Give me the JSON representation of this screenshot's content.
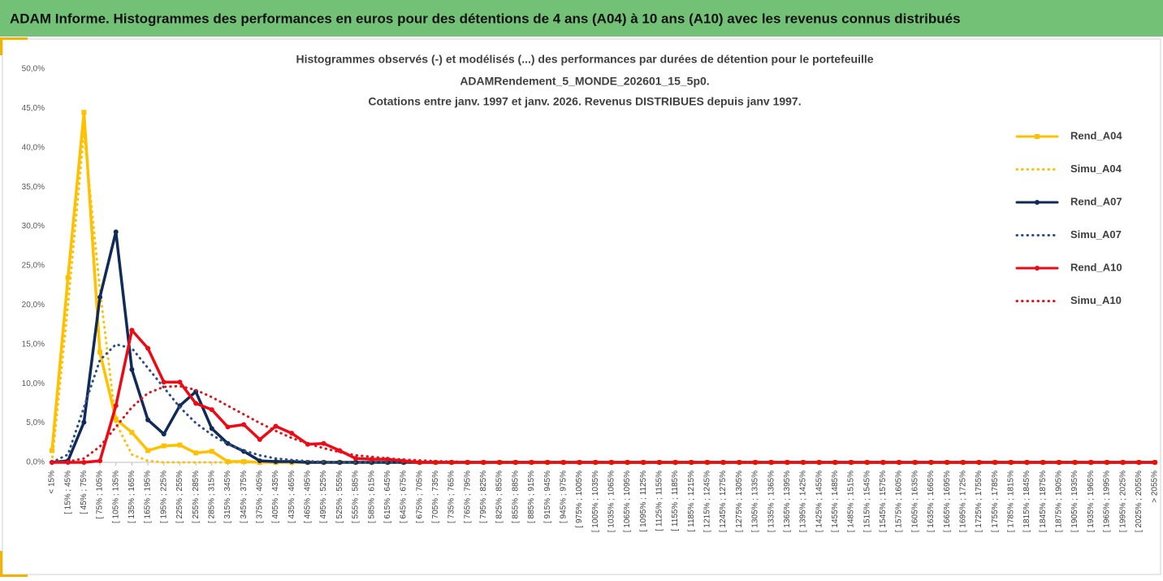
{
  "header": "ADAM Informe. Histogrammes des performances en euros pour des détentions de 4 ans (A04) à 10 ans (A10) avec les revenus connus distribués",
  "chart_data": {
    "type": "line",
    "title": [
      "Histogrammes observés (-) et modélisés (...) des performances par durées de détention pour le portefeuille",
      "ADAMRendement_5_MONDE_202601_15_5p0.",
      "Cotations entre janv. 1997 et janv. 2026. Revenus DISTRIBUES depuis janv 1997."
    ],
    "categories": [
      "< 15%",
      "[ 15% ; 45%",
      "[ 45% ; 75%",
      "[ 75% ; 105%",
      "[ 105% ; 135%",
      "[ 135% ; 165%",
      "[ 165% ; 195%",
      "[ 195% ; 225%",
      "[ 225% ; 255%",
      "[ 255% ; 285%",
      "[ 285% ; 315%",
      "[ 315% ; 345%",
      "[ 345% ; 375%",
      "[ 375% ; 405%",
      "[ 405% ; 435%",
      "[ 435% ; 465%",
      "[ 465% ; 495%",
      "[ 495% ; 525%",
      "[ 525% ; 555%",
      "[ 555% ; 585%",
      "[ 585% ; 615%",
      "[ 615% ; 645%",
      "[ 645% ; 675%",
      "[ 675% ; 705%",
      "[ 705% ; 735%",
      "[ 735% ; 765%",
      "[ 765% ; 795%",
      "[ 795% ; 825%",
      "[ 825% ; 855%",
      "[ 855% ; 885%",
      "[ 885% ; 915%",
      "[ 915% ; 945%",
      "[ 945% ; 975%",
      "[ 975% ; 1005%",
      "[ 1005% ; 1035%",
      "[ 1035% ; 1065%",
      "[ 1065% ; 1095%",
      "[ 1095% ; 1125%",
      "[ 1125% ; 1155%",
      "[ 1155% ; 1185%",
      "[ 1185% ; 1215%",
      "[ 1215% ; 1245%",
      "[ 1245% ; 1275%",
      "[ 1275% ; 1305%",
      "[ 1305% ; 1335%",
      "[ 1335% ; 1365%",
      "[ 1365% ; 1395%",
      "[ 1395% ; 1425%",
      "[ 1425% ; 1455%",
      "[ 1455% ; 1485%",
      "[ 1485% ; 1515%",
      "[ 1515% ; 1545%",
      "[ 1545% ; 1575%",
      "[ 1575% ; 1605%",
      "[ 1605% ; 1635%",
      "[ 1635% ; 1665%",
      "[ 1665% ; 1695%",
      "[ 1695% ; 1725%",
      "[ 1725% ; 1755%",
      "[ 1755% ; 1785%",
      "[ 1785% ; 1815%",
      "[ 1815% ; 1845%",
      "[ 1845% ; 1875%",
      "[ 1875% ; 1905%",
      "[ 1905% ; 1935%",
      "[ 1935% ; 1965%",
      "[ 1965% ; 1995%",
      "[ 1995% ; 2025%",
      "[ 2025% ; 2055%",
      "> 2055%"
    ],
    "series": [
      {
        "name": "Rend_A04",
        "color": "#ffc000",
        "style": "solid",
        "marker": "square",
        "values": [
          1.5,
          23.5,
          44.5,
          14,
          5.5,
          3.8,
          1.5,
          2.1,
          2.2,
          1.2,
          1.4,
          0.1,
          0.1,
          0,
          0,
          0,
          0,
          0,
          0,
          0,
          0,
          0,
          0,
          0,
          0,
          0,
          0,
          0,
          0,
          0,
          0,
          0,
          0,
          0,
          0,
          0,
          0,
          0,
          0,
          0,
          0,
          0,
          0,
          0,
          0,
          0,
          0,
          0,
          0,
          0,
          0,
          0,
          0,
          0,
          0,
          0,
          0,
          0,
          0,
          0,
          0,
          0,
          0,
          0,
          0,
          0,
          0,
          0,
          0,
          0
        ]
      },
      {
        "name": "Simu_A04",
        "color": "#ffc000",
        "style": "dotted",
        "values": [
          0,
          20,
          42,
          22,
          5,
          1,
          0.2,
          0,
          0,
          0,
          0,
          0,
          0,
          0,
          0,
          0,
          0,
          0,
          0,
          0,
          0,
          0,
          0,
          0,
          0,
          0,
          0,
          0,
          0,
          0,
          0,
          0,
          0,
          0,
          0,
          0,
          0,
          0,
          0,
          0,
          0,
          0,
          0,
          0,
          0,
          0,
          0,
          0,
          0,
          0,
          0,
          0,
          0,
          0,
          0,
          0,
          0,
          0,
          0,
          0,
          0,
          0,
          0,
          0,
          0,
          0,
          0,
          0,
          0,
          0
        ]
      },
      {
        "name": "Rend_A07",
        "color": "#102a5a",
        "style": "solid",
        "marker": "circle",
        "values": [
          0,
          0.2,
          5.1,
          21,
          29.3,
          11.8,
          5.4,
          3.6,
          7.2,
          9,
          4.3,
          2.4,
          1.4,
          0.2,
          0.1,
          0.1,
          0,
          0,
          0,
          0,
          0,
          0,
          0,
          0,
          0,
          0,
          0,
          0,
          0,
          0,
          0,
          0,
          0,
          0,
          0,
          0,
          0,
          0,
          0,
          0,
          0,
          0,
          0,
          0,
          0,
          0,
          0,
          0,
          0,
          0,
          0,
          0,
          0,
          0,
          0,
          0,
          0,
          0,
          0,
          0,
          0,
          0,
          0,
          0,
          0,
          0,
          0,
          0,
          0,
          0
        ]
      },
      {
        "name": "Simu_A07",
        "color": "#2e4f86",
        "style": "dotted",
        "values": [
          0,
          1,
          7,
          13,
          15,
          14.5,
          12,
          9.5,
          7,
          5,
          3.5,
          2.3,
          1.5,
          0.9,
          0.5,
          0.3,
          0.15,
          0.05,
          0,
          0,
          0,
          0,
          0,
          0,
          0,
          0,
          0,
          0,
          0,
          0,
          0,
          0,
          0,
          0,
          0,
          0,
          0,
          0,
          0,
          0,
          0,
          0,
          0,
          0,
          0,
          0,
          0,
          0,
          0,
          0,
          0,
          0,
          0,
          0,
          0,
          0,
          0,
          0,
          0,
          0,
          0,
          0,
          0,
          0,
          0,
          0,
          0,
          0,
          0,
          0
        ]
      },
      {
        "name": "Rend_A10",
        "color": "#ee0a14",
        "style": "solid",
        "marker": "circle",
        "values": [
          0,
          0,
          0,
          0.2,
          7.2,
          16.8,
          14.5,
          10.2,
          10.2,
          7.5,
          6.7,
          4.5,
          4.8,
          2.9,
          4.6,
          3.7,
          2.3,
          2.4,
          1.5,
          0.5,
          0.4,
          0.4,
          0.2,
          0,
          0,
          0,
          0,
          0,
          0,
          0,
          0,
          0,
          0,
          0,
          0,
          0,
          0,
          0,
          0,
          0,
          0,
          0,
          0,
          0,
          0,
          0,
          0,
          0,
          0,
          0,
          0,
          0,
          0,
          0,
          0,
          0,
          0,
          0,
          0,
          0,
          0,
          0,
          0,
          0,
          0,
          0,
          0,
          0,
          0,
          0
        ]
      },
      {
        "name": "Simu_A10",
        "color": "#e0141e",
        "style": "dotted",
        "values": [
          0,
          0.1,
          0.5,
          2,
          4.5,
          7,
          8.8,
          9.6,
          9.7,
          9.2,
          8.3,
          7.2,
          6.1,
          5,
          4,
          3.1,
          2.4,
          1.8,
          1.3,
          0.9,
          0.7,
          0.5,
          0.35,
          0.25,
          0.15,
          0.1,
          0.05,
          0,
          0,
          0,
          0,
          0,
          0,
          0,
          0,
          0,
          0,
          0,
          0,
          0,
          0,
          0,
          0,
          0,
          0,
          0,
          0,
          0,
          0,
          0,
          0,
          0,
          0,
          0,
          0,
          0,
          0,
          0,
          0,
          0,
          0,
          0,
          0,
          0,
          0,
          0,
          0,
          0,
          0,
          0
        ]
      }
    ],
    "ylim": [
      0,
      50
    ],
    "yticks": [
      {
        "value": 0,
        "label": "0,0%"
      },
      {
        "value": 5,
        "label": "5,0%"
      },
      {
        "value": 10,
        "label": "10,0%"
      },
      {
        "value": 15,
        "label": "15,0%"
      },
      {
        "value": 20,
        "label": "20,0%"
      },
      {
        "value": 25,
        "label": "25,0%"
      },
      {
        "value": 30,
        "label": "30,0%"
      },
      {
        "value": 35,
        "label": "35,0%"
      },
      {
        "value": 40,
        "label": "40,0%"
      },
      {
        "value": 45,
        "label": "45,0%"
      },
      {
        "value": 50,
        "label": "50,0%"
      }
    ],
    "grid": false,
    "legend": "right"
  }
}
